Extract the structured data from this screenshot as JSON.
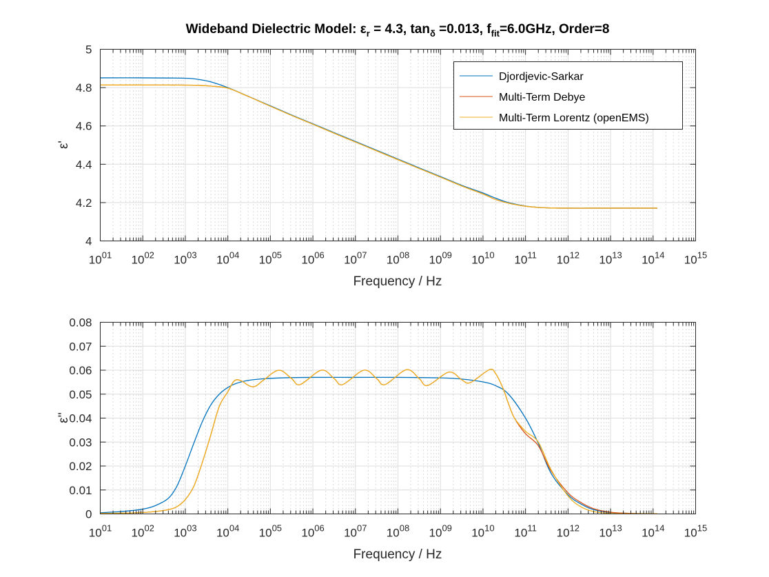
{
  "chart_data": [
    {
      "type": "line",
      "title_parts": {
        "prefix": "Wideband Dielectric Model: ε",
        "sub1": "r",
        "mid1": " = 4.3, tan",
        "sub2": "δ",
        "mid2": " =0.013, f",
        "sub3": "fit",
        "suffix": "=6.0GHz, Order=8"
      },
      "title": "Wideband Dielectric Model: εr = 4.3, tanδ =0.013, ffit=6.0GHz, Order=8",
      "xlabel": "Frequency / Hz",
      "ylabel": "ε'",
      "xscale": "log",
      "xlim": [
        10,
        1000000000000000.0
      ],
      "ylim": [
        4,
        5
      ],
      "yticks": [
        "4",
        "4.2",
        "4.4",
        "4.6",
        "4.8",
        "5"
      ],
      "ytick_values": [
        4,
        4.2,
        4.4,
        4.6,
        4.8,
        5
      ],
      "xtick_exponents": [
        "01",
        "02",
        "03",
        "04",
        "05",
        "06",
        "07",
        "08",
        "09",
        "10",
        "11",
        "12",
        "13",
        "14",
        "15"
      ],
      "grid": true,
      "legend_position": "top-right",
      "legend": [
        "Djordjevic-Sarkar",
        "Multi-Term Debye",
        "Multi-Term Lorentz (openEMS)"
      ],
      "series": [
        {
          "name": "Djordjevic-Sarkar",
          "color": "#0072BD",
          "log10_x": [
            1,
            2,
            3,
            3.3,
            3.6,
            4,
            4.5,
            5,
            5.5,
            6,
            6.5,
            7,
            7.5,
            8,
            8.5,
            9,
            9.5,
            10,
            10.3,
            10.6,
            11,
            11.3,
            11.6,
            12,
            12.5,
            13,
            13.5,
            14,
            14.1
          ],
          "y": [
            4.851,
            4.851,
            4.849,
            4.843,
            4.83,
            4.8,
            4.753,
            4.705,
            4.657,
            4.611,
            4.565,
            4.519,
            4.473,
            4.427,
            4.381,
            4.336,
            4.29,
            4.25,
            4.223,
            4.2,
            4.182,
            4.175,
            4.172,
            4.171,
            4.171,
            4.171,
            4.171,
            4.171,
            4.171
          ]
        },
        {
          "name": "Multi-Term Debye",
          "color": "#D95319",
          "log10_x": [
            1,
            2,
            3,
            3.3,
            3.6,
            4,
            4.5,
            5,
            5.5,
            6,
            6.5,
            7,
            7.5,
            8,
            8.5,
            9,
            9.5,
            10,
            10.3,
            10.6,
            11,
            11.3,
            11.6,
            12,
            12.5,
            13,
            13.5,
            14,
            14.1
          ],
          "y": [
            4.814,
            4.814,
            4.813,
            4.812,
            4.808,
            4.797,
            4.752,
            4.703,
            4.655,
            4.609,
            4.562,
            4.516,
            4.47,
            4.424,
            4.378,
            4.333,
            4.287,
            4.245,
            4.216,
            4.197,
            4.181,
            4.175,
            4.172,
            4.171,
            4.171,
            4.171,
            4.171,
            4.171,
            4.171
          ]
        },
        {
          "name": "Multi-Term Lorentz (openEMS)",
          "color": "#EDB120",
          "log10_x": [
            1,
            2,
            3,
            3.3,
            3.6,
            4,
            4.5,
            5,
            5.5,
            6,
            6.5,
            7,
            7.5,
            8,
            8.5,
            9,
            9.5,
            10,
            10.3,
            10.6,
            11,
            11.3,
            11.6,
            12,
            12.5,
            13,
            13.5,
            14,
            14.1
          ],
          "y": [
            4.814,
            4.814,
            4.813,
            4.812,
            4.808,
            4.797,
            4.752,
            4.703,
            4.655,
            4.609,
            4.562,
            4.516,
            4.47,
            4.424,
            4.378,
            4.333,
            4.287,
            4.245,
            4.216,
            4.197,
            4.181,
            4.175,
            4.172,
            4.171,
            4.171,
            4.171,
            4.171,
            4.171,
            4.171
          ]
        }
      ]
    },
    {
      "type": "line",
      "xlabel": "Frequency / Hz",
      "ylabel": "ε''",
      "xscale": "log",
      "xlim": [
        10,
        1000000000000000.0
      ],
      "ylim": [
        0,
        0.08
      ],
      "yticks": [
        "0",
        "0.01",
        "0.02",
        "0.03",
        "0.04",
        "0.05",
        "0.06",
        "0.07",
        "0.08"
      ],
      "ytick_values": [
        0,
        0.01,
        0.02,
        0.03,
        0.04,
        0.05,
        0.06,
        0.07,
        0.08
      ],
      "xtick_exponents": [
        "01",
        "02",
        "03",
        "04",
        "05",
        "06",
        "07",
        "08",
        "09",
        "10",
        "11",
        "12",
        "13",
        "14",
        "15"
      ],
      "grid": true,
      "series": [
        {
          "name": "Djordjevic-Sarkar",
          "color": "#0072BD",
          "log10_x": [
            1,
            1.5,
            2,
            2.3,
            2.6,
            2.8,
            3,
            3.2,
            3.4,
            3.6,
            3.8,
            4,
            4.2,
            4.5,
            5,
            5.5,
            6,
            7,
            8,
            9,
            9.5,
            10,
            10.3,
            10.6,
            11,
            11.3,
            11.6,
            12,
            12.3,
            12.6,
            13,
            13.5,
            14,
            14.1
          ],
          "y": [
            0.0005,
            0.001,
            0.002,
            0.0035,
            0.0065,
            0.0115,
            0.02,
            0.0295,
            0.0385,
            0.0455,
            0.05,
            0.0528,
            0.0545,
            0.0558,
            0.0566,
            0.0569,
            0.057,
            0.057,
            0.057,
            0.0568,
            0.0563,
            0.0551,
            0.0535,
            0.05,
            0.04,
            0.0295,
            0.017,
            0.008,
            0.0042,
            0.0018,
            0.0006,
            0.0002,
            0.0001,
            0.0001
          ]
        },
        {
          "name": "Multi-Term Debye",
          "color": "#D95319",
          "log10_x": [
            1,
            1.5,
            2,
            2.3,
            2.6,
            2.8,
            3,
            3.2,
            3.4,
            3.6,
            3.8,
            4,
            4.15,
            4.3,
            4.5,
            4.65,
            4.85,
            5.2,
            5.5,
            5.7,
            6.2,
            6.5,
            6.7,
            7.2,
            7.5,
            7.7,
            8.2,
            8.5,
            8.7,
            9.2,
            9.5,
            9.7,
            10.15,
            10.3,
            10.47,
            10.6,
            10.74,
            11,
            11.3,
            11.6,
            12,
            12.3,
            12.6,
            13,
            13.5,
            14,
            14.1
          ],
          "y": [
            0.0002,
            0.0003,
            0.0006,
            0.001,
            0.0018,
            0.003,
            0.006,
            0.0115,
            0.0215,
            0.033,
            0.045,
            0.051,
            0.0555,
            0.0557,
            0.0535,
            0.0533,
            0.056,
            0.06,
            0.0565,
            0.054,
            0.06,
            0.0565,
            0.054,
            0.06,
            0.0565,
            0.054,
            0.0602,
            0.0565,
            0.0536,
            0.0592,
            0.056,
            0.0548,
            0.0602,
            0.0585,
            0.0525,
            0.046,
            0.04,
            0.0335,
            0.0285,
            0.018,
            0.0088,
            0.0048,
            0.0022,
            0.0007,
            0.0002,
            0.0001,
            0.0001
          ]
        },
        {
          "name": "Multi-Term Lorentz (openEMS)",
          "color": "#EDB120",
          "log10_x": [
            1,
            1.5,
            2,
            2.3,
            2.6,
            2.8,
            3,
            3.2,
            3.4,
            3.6,
            3.8,
            4,
            4.15,
            4.3,
            4.5,
            4.65,
            4.85,
            5.2,
            5.5,
            5.7,
            6.2,
            6.5,
            6.7,
            7.2,
            7.5,
            7.7,
            8.2,
            8.5,
            8.7,
            9.2,
            9.5,
            9.7,
            10.15,
            10.3,
            10.47,
            10.6,
            10.74,
            11,
            11.3,
            11.6,
            12,
            12.3,
            12.6,
            13,
            13.5,
            14,
            14.1
          ],
          "y": [
            0.0002,
            0.0003,
            0.0006,
            0.001,
            0.0018,
            0.003,
            0.006,
            0.0115,
            0.0215,
            0.033,
            0.045,
            0.051,
            0.0555,
            0.0557,
            0.0535,
            0.0533,
            0.056,
            0.06,
            0.0565,
            0.054,
            0.06,
            0.0565,
            0.054,
            0.06,
            0.0565,
            0.054,
            0.0602,
            0.0565,
            0.0536,
            0.0592,
            0.056,
            0.0548,
            0.0602,
            0.0585,
            0.0525,
            0.046,
            0.04,
            0.0345,
            0.03,
            0.0185,
            0.0075,
            0.003,
            0.001,
            0.0002,
            0.0001,
            0.0001,
            0.0001
          ]
        }
      ]
    }
  ]
}
